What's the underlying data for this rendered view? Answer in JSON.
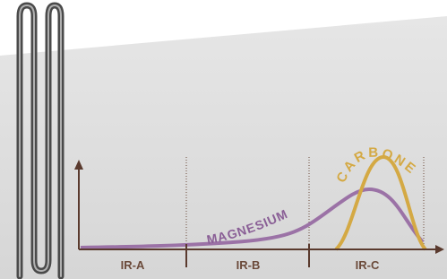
{
  "bands": [
    "IR-A",
    "IR-B",
    "IR-C"
  ],
  "curves": {
    "magnesium": "MAGNESIUM",
    "carbon": "CARBONE"
  }
}
